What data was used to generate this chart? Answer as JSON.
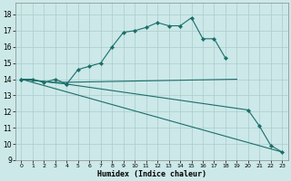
{
  "xlabel": "Humidex (Indice chaleur)",
  "bg_color": "#cce8e8",
  "grid_color": "#aacccc",
  "line_color": "#1a6e6a",
  "xlim": [
    -0.5,
    23.5
  ],
  "ylim": [
    9.0,
    18.7
  ],
  "yticks": [
    9,
    10,
    11,
    12,
    13,
    14,
    15,
    16,
    17,
    18
  ],
  "xticks": [
    0,
    1,
    2,
    3,
    4,
    5,
    6,
    7,
    8,
    9,
    10,
    11,
    12,
    13,
    14,
    15,
    16,
    17,
    18,
    19,
    20,
    21,
    22,
    23
  ],
  "curve1_x": [
    0,
    1,
    2,
    3,
    4,
    5,
    6,
    7,
    8,
    9,
    10,
    11,
    12,
    13,
    14,
    15,
    16,
    17,
    18
  ],
  "curve1_y": [
    14.0,
    14.0,
    13.8,
    14.0,
    13.7,
    14.6,
    14.8,
    15.0,
    16.0,
    16.9,
    17.0,
    17.2,
    17.5,
    17.3,
    17.3,
    17.8,
    16.5,
    16.5,
    15.3
  ],
  "curve2_x": [
    0,
    3,
    19
  ],
  "curve2_y": [
    14.0,
    13.8,
    14.0
  ],
  "curve3_x": [
    0,
    4,
    20,
    21,
    22,
    23
  ],
  "curve3_y": [
    14.0,
    13.7,
    12.1,
    11.1,
    9.9,
    9.5
  ],
  "curve4_x": [
    0,
    23
  ],
  "curve4_y": [
    14.0,
    9.5
  ]
}
